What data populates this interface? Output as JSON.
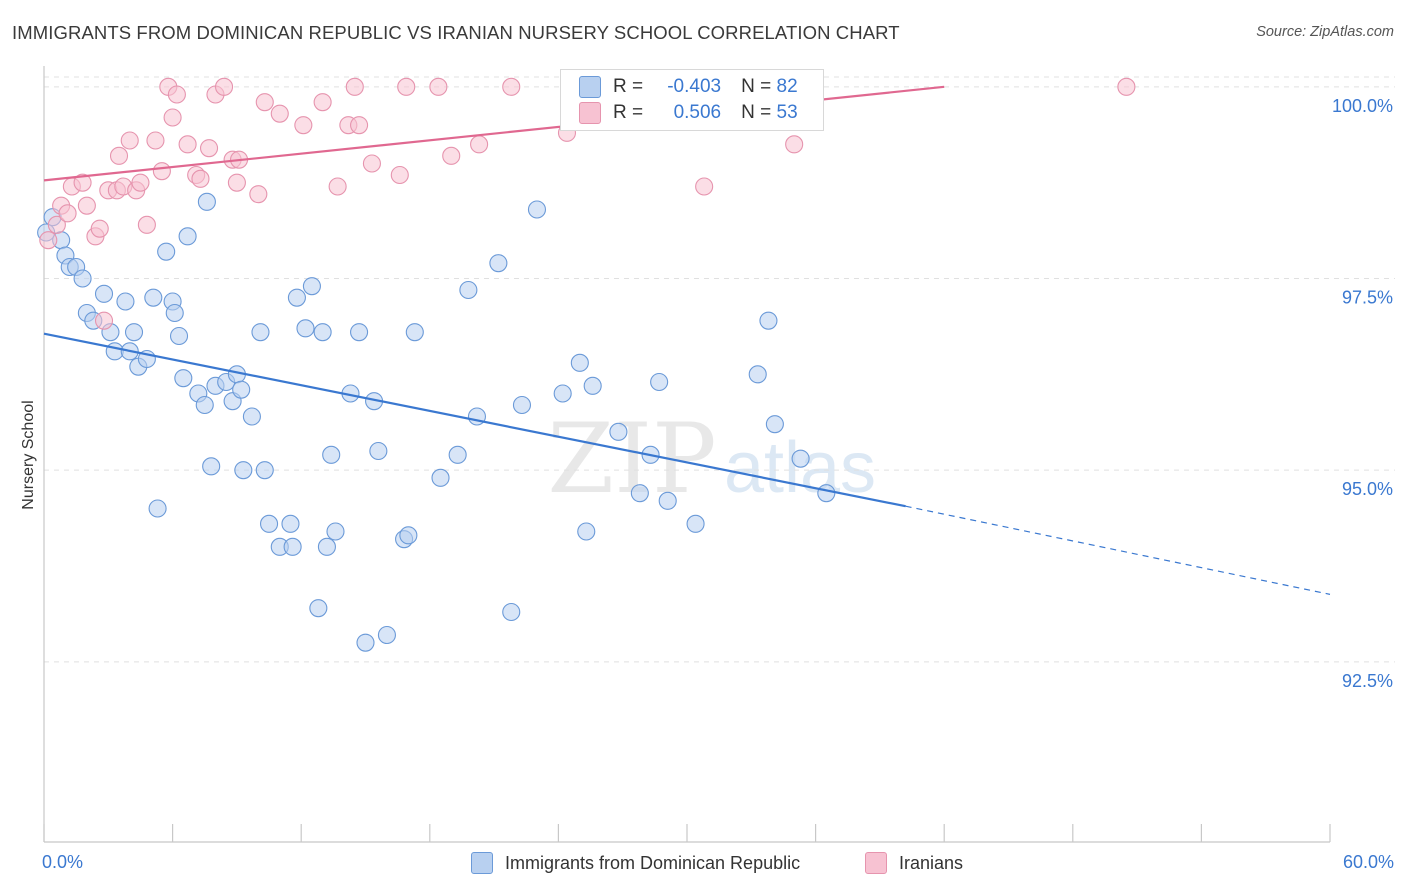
{
  "header": {
    "title": "IMMIGRANTS FROM DOMINICAN REPUBLIC VS IRANIAN NURSERY SCHOOL CORRELATION CHART",
    "source": "Source: ZipAtlas.com"
  },
  "legend_top": {
    "rows": [
      {
        "r_label": "R =",
        "r_value": "-0.403",
        "n_label": "N =",
        "n_value": "82"
      },
      {
        "r_label": "R =",
        "r_value": "0.506",
        "n_label": "N =",
        "n_value": "53"
      }
    ]
  },
  "colors": {
    "blue": "#3a78d0",
    "blue_fill": "#b8d0f0",
    "pink": "#e06890",
    "pink_fill": "#f7c2d2",
    "grid": "#e0e0e0",
    "tick_label": "#3a78d0"
  },
  "watermark": {
    "zip": "ZIP",
    "atlas": "atlas"
  },
  "chart_data": {
    "type": "scatter",
    "xlabel": "",
    "ylabel": "Nursery School",
    "xlim": [
      0,
      60
    ],
    "ylim": [
      90.15,
      100.35
    ],
    "x_tick_labels": {
      "left": "0.0%",
      "right": "60.0%"
    },
    "y_ticks": [
      {
        "value": 100.0,
        "label": "100.0%"
      },
      {
        "value": 97.5,
        "label": "97.5%"
      },
      {
        "value": 95.0,
        "label": "95.0%"
      },
      {
        "value": 92.5,
        "label": "92.5%"
      }
    ],
    "grid": true,
    "legend_position": "bottom",
    "series": [
      {
        "name": "Immigrants from Dominican Republic",
        "color": "blue",
        "trend": {
          "x0": 0,
          "y0": 96.78,
          "x1": 40.2,
          "y1": 94.53,
          "dash_x1": 60,
          "dash_y1": 93.38
        },
        "points": [
          [
            0.4,
            98.3
          ],
          [
            0.8,
            98.0
          ],
          [
            1.0,
            97.8
          ],
          [
            1.2,
            97.65
          ],
          [
            1.5,
            97.65
          ],
          [
            1.8,
            97.5
          ],
          [
            2.0,
            97.05
          ],
          [
            2.3,
            96.95
          ],
          [
            2.8,
            97.3
          ],
          [
            3.1,
            96.8
          ],
          [
            3.3,
            96.55
          ],
          [
            3.8,
            97.2
          ],
          [
            4.0,
            96.55
          ],
          [
            4.2,
            96.8
          ],
          [
            4.4,
            96.35
          ],
          [
            4.8,
            96.45
          ],
          [
            5.1,
            97.25
          ],
          [
            5.3,
            94.5
          ],
          [
            5.7,
            97.85
          ],
          [
            6.0,
            97.2
          ],
          [
            6.1,
            97.05
          ],
          [
            6.3,
            96.75
          ],
          [
            6.5,
            96.2
          ],
          [
            6.7,
            98.05
          ],
          [
            7.2,
            96.0
          ],
          [
            7.5,
            95.85
          ],
          [
            7.6,
            98.5
          ],
          [
            7.8,
            95.05
          ],
          [
            8.0,
            96.1
          ],
          [
            8.5,
            96.15
          ],
          [
            8.8,
            95.9
          ],
          [
            9.0,
            96.25
          ],
          [
            9.2,
            96.05
          ],
          [
            9.3,
            95.0
          ],
          [
            9.7,
            95.7
          ],
          [
            10.1,
            96.8
          ],
          [
            10.3,
            95.0
          ],
          [
            10.5,
            94.3
          ],
          [
            11.0,
            94.0
          ],
          [
            11.5,
            94.3
          ],
          [
            11.6,
            94.0
          ],
          [
            11.8,
            97.25
          ],
          [
            12.2,
            96.85
          ],
          [
            12.5,
            97.4
          ],
          [
            12.8,
            93.2
          ],
          [
            13.0,
            96.8
          ],
          [
            13.2,
            94.0
          ],
          [
            13.4,
            95.2
          ],
          [
            13.6,
            94.2
          ],
          [
            14.3,
            96.0
          ],
          [
            14.7,
            96.8
          ],
          [
            15.0,
            92.75
          ],
          [
            15.4,
            95.9
          ],
          [
            15.6,
            95.25
          ],
          [
            16.0,
            92.85
          ],
          [
            16.8,
            94.1
          ],
          [
            17.0,
            94.15
          ],
          [
            17.3,
            96.8
          ],
          [
            18.5,
            94.9
          ],
          [
            19.3,
            95.2
          ],
          [
            19.8,
            97.35
          ],
          [
            20.2,
            95.7
          ],
          [
            21.2,
            97.7
          ],
          [
            21.8,
            93.15
          ],
          [
            22.3,
            95.85
          ],
          [
            23.0,
            98.4
          ],
          [
            24.2,
            96.0
          ],
          [
            25.0,
            96.4
          ],
          [
            25.3,
            94.2
          ],
          [
            25.6,
            96.1
          ],
          [
            26.8,
            95.5
          ],
          [
            27.8,
            94.7
          ],
          [
            28.3,
            95.2
          ],
          [
            28.7,
            96.15
          ],
          [
            29.1,
            94.6
          ],
          [
            30.4,
            94.3
          ],
          [
            33.3,
            96.25
          ],
          [
            33.8,
            96.95
          ],
          [
            34.1,
            95.6
          ],
          [
            35.3,
            95.15
          ],
          [
            36.5,
            94.7
          ],
          [
            0.1,
            98.1
          ]
        ]
      },
      {
        "name": "Iranians",
        "color": "pink",
        "trend": {
          "x0": 0,
          "y0": 98.78,
          "x1": 42.0,
          "y1": 100.0
        },
        "points": [
          [
            0.2,
            98.0
          ],
          [
            0.6,
            98.2
          ],
          [
            0.8,
            98.45
          ],
          [
            1.1,
            98.35
          ],
          [
            1.3,
            98.7
          ],
          [
            1.8,
            98.75
          ],
          [
            2.0,
            98.45
          ],
          [
            2.4,
            98.05
          ],
          [
            2.6,
            98.15
          ],
          [
            2.8,
            96.95
          ],
          [
            3.0,
            98.65
          ],
          [
            3.4,
            98.65
          ],
          [
            3.5,
            99.1
          ],
          [
            3.7,
            98.7
          ],
          [
            4.0,
            99.3
          ],
          [
            4.3,
            98.65
          ],
          [
            4.5,
            98.75
          ],
          [
            4.8,
            98.2
          ],
          [
            5.2,
            99.3
          ],
          [
            5.5,
            98.9
          ],
          [
            5.8,
            100.0
          ],
          [
            6.0,
            99.6
          ],
          [
            6.2,
            99.9
          ],
          [
            6.7,
            99.25
          ],
          [
            7.1,
            98.85
          ],
          [
            7.3,
            98.8
          ],
          [
            7.7,
            99.2
          ],
          [
            8.0,
            99.9
          ],
          [
            8.4,
            100.0
          ],
          [
            8.8,
            99.05
          ],
          [
            9.0,
            98.75
          ],
          [
            9.1,
            99.05
          ],
          [
            10.0,
            98.6
          ],
          [
            10.3,
            99.8
          ],
          [
            11.0,
            99.65
          ],
          [
            12.1,
            99.5
          ],
          [
            13.0,
            99.8
          ],
          [
            13.7,
            98.7
          ],
          [
            14.2,
            99.5
          ],
          [
            14.5,
            100.0
          ],
          [
            14.7,
            99.5
          ],
          [
            15.3,
            99.0
          ],
          [
            16.6,
            98.85
          ],
          [
            16.9,
            100.0
          ],
          [
            18.4,
            100.0
          ],
          [
            19.0,
            99.1
          ],
          [
            20.3,
            99.25
          ],
          [
            21.8,
            100.0
          ],
          [
            24.4,
            99.4
          ],
          [
            30.8,
            98.7
          ],
          [
            32.9,
            100.0
          ],
          [
            35.0,
            99.25
          ],
          [
            50.5,
            100.0
          ]
        ]
      }
    ]
  },
  "legend_bottom": {
    "items": [
      "Immigrants from Dominican Republic",
      "Iranians"
    ]
  }
}
